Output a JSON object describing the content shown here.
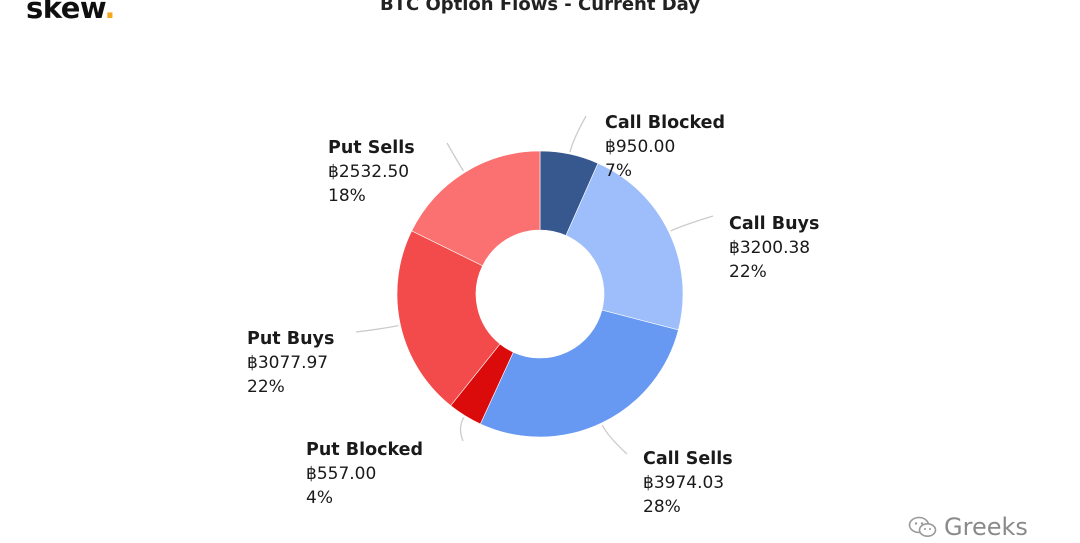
{
  "brand": {
    "name": "skew",
    "dot": "."
  },
  "watermark": {
    "text": "Greeks",
    "icon": "wechat-icon"
  },
  "colors": {
    "call_blocked": "#37578f",
    "call_buys": "#9dbdfb",
    "call_sells": "#6798f2",
    "put_blocked": "#dc0b0b",
    "put_buys": "#f34b4b",
    "put_sells": "#fb7171",
    "connector": "#cccccc"
  },
  "chart_data": {
    "type": "pie",
    "donut": true,
    "title": "BTC Option Flows - Current Day",
    "slices": [
      {
        "name": "Call Blocked",
        "value": 950.0,
        "value_label": "฿950.00",
        "percent_label": "7%",
        "color": "#37578f",
        "side": "right"
      },
      {
        "name": "Call Buys",
        "value": 3200.38,
        "value_label": "฿3200.38",
        "percent_label": "22%",
        "color": "#9dbdfb",
        "side": "right"
      },
      {
        "name": "Call Sells",
        "value": 3974.03,
        "value_label": "฿3974.03",
        "percent_label": "28%",
        "color": "#6798f2",
        "side": "right"
      },
      {
        "name": "Put Blocked",
        "value": 557.0,
        "value_label": "฿557.00",
        "percent_label": "4%",
        "color": "#dc0b0b",
        "side": "left"
      },
      {
        "name": "Put Buys",
        "value": 3077.97,
        "value_label": "฿3077.97",
        "percent_label": "22%",
        "color": "#f34b4b",
        "side": "left"
      },
      {
        "name": "Put Sells",
        "value": 2532.5,
        "value_label": "฿2532.50",
        "percent_label": "18%",
        "color": "#fb7171",
        "side": "left"
      }
    ]
  }
}
